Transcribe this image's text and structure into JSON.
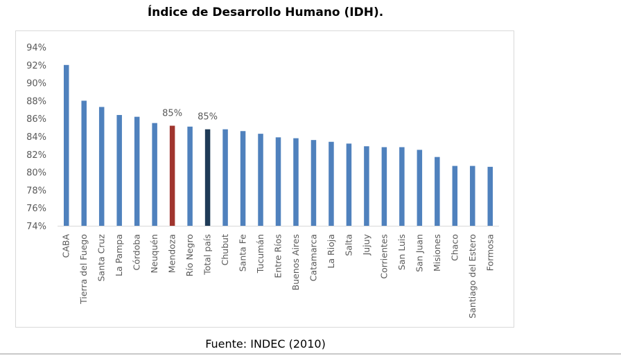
{
  "title": "Índice de Desarrollo Humano (IDH).",
  "source": "Fuente: INDEC (2010)",
  "colors": {
    "default_bar": "#4F81BD",
    "highlight_mendoza": "#A0352E",
    "highlight_total": "#1F3B57",
    "axis_text": "#595959",
    "axis_line": "#d9d9d9"
  },
  "chart_data": {
    "type": "bar",
    "title": "Índice de Desarrollo Humano (IDH).",
    "xlabel": "",
    "ylabel": "",
    "ylim": [
      74,
      94
    ],
    "yticks": [
      "74%",
      "76%",
      "78%",
      "80%",
      "82%",
      "84%",
      "86%",
      "88%",
      "90%",
      "92%",
      "94%"
    ],
    "grid": false,
    "legend": "none",
    "categories": [
      "CABA",
      "Tierra del Fuego",
      "Santa Cruz",
      "La Pampa",
      "Córdoba",
      "Neuquén",
      "Mendoza",
      "Río Negro",
      "Total país",
      "Chubut",
      "Santa Fe",
      "Tucumán",
      "Entre Ríos",
      "Buenos Aires",
      "Catamarca",
      "La Rioja",
      "Salta",
      "Jujuy",
      "Corrientes",
      "San Luis",
      "San Juan",
      "Misiones",
      "Chaco",
      "Santiago del Estero",
      "Formosa"
    ],
    "values": [
      92.0,
      88.0,
      87.3,
      86.4,
      86.2,
      85.5,
      85.2,
      85.1,
      84.8,
      84.8,
      84.6,
      84.3,
      83.9,
      83.8,
      83.6,
      83.4,
      83.2,
      82.9,
      82.8,
      82.8,
      82.5,
      81.7,
      80.7,
      80.7,
      80.6
    ],
    "highlights": {
      "Mendoza": "highlight_mendoza",
      "Total país": "highlight_total"
    },
    "data_labels": [
      {
        "category": "Mendoza",
        "text": "85%"
      },
      {
        "category": "Total país",
        "text": "85%"
      }
    ]
  }
}
